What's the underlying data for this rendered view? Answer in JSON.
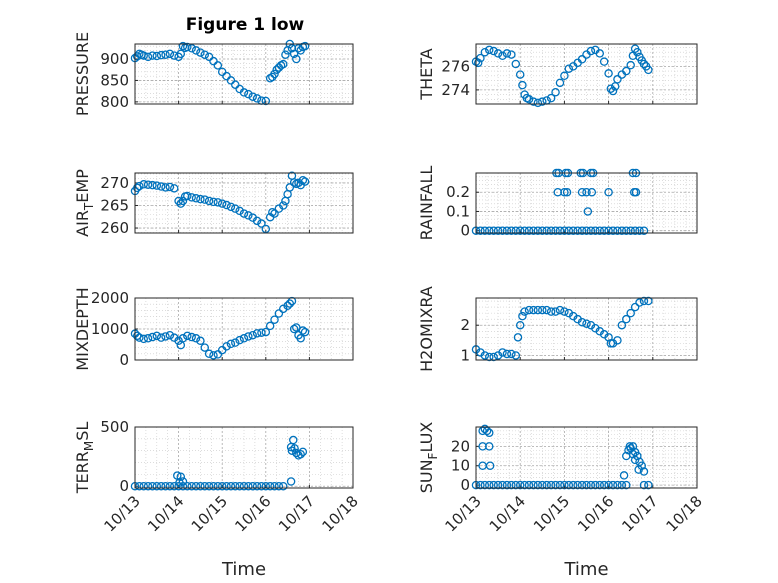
{
  "chart_data": {
    "type": "scatter",
    "title": "Figure 1 low",
    "marker_color": "#0072BD",
    "marker": "circle-open",
    "x_ticks": [
      "10/13",
      "10/14",
      "10/15",
      "10/16",
      "10/17",
      "10/18"
    ],
    "x_range": [
      13,
      18
    ],
    "xlabel": "Time",
    "grid": "major+minor dotted",
    "panels": [
      {
        "ylabel": "PRESSURE",
        "sub": "",
        "sub_after": "",
        "yticks": [
          800,
          850,
          900
        ],
        "ylim": [
          795,
          935
        ],
        "x": [
          13.0,
          13.05,
          13.1,
          13.15,
          13.2,
          13.3,
          13.4,
          13.5,
          13.6,
          13.7,
          13.8,
          13.9,
          14.0,
          14.05,
          14.1,
          14.15,
          14.2,
          14.3,
          14.4,
          14.5,
          14.6,
          14.7,
          14.8,
          14.9,
          15.0,
          15.1,
          15.2,
          15.3,
          15.4,
          15.5,
          15.6,
          15.7,
          15.8,
          15.9,
          16.0,
          16.1,
          16.15,
          16.2,
          16.25,
          16.3,
          16.35,
          16.4,
          16.45,
          16.5,
          16.55,
          16.6,
          16.65,
          16.7,
          16.75,
          16.8,
          16.85,
          16.9
        ],
        "y": [
          902,
          906,
          912,
          910,
          908,
          905,
          908,
          907,
          909,
          910,
          912,
          908,
          905,
          912,
          930,
          926,
          928,
          925,
          920,
          915,
          910,
          905,
          895,
          885,
          870,
          860,
          850,
          840,
          830,
          822,
          818,
          812,
          808,
          803,
          802,
          855,
          858,
          865,
          875,
          880,
          885,
          888,
          910,
          920,
          935,
          925,
          912,
          900,
          925,
          920,
          928,
          930
        ]
      },
      {
        "ylabel": "THETA",
        "sub": "",
        "sub_after": "",
        "yticks": [
          274,
          276
        ],
        "ylim": [
          272.8,
          277.9
        ],
        "x": [
          13.0,
          13.05,
          13.1,
          13.2,
          13.3,
          13.4,
          13.5,
          13.6,
          13.7,
          13.8,
          13.9,
          14.0,
          14.05,
          14.1,
          14.15,
          14.2,
          14.3,
          14.4,
          14.5,
          14.6,
          14.7,
          14.8,
          14.9,
          15.0,
          15.1,
          15.2,
          15.3,
          15.4,
          15.5,
          15.6,
          15.7,
          15.8,
          15.9,
          16.0,
          16.05,
          16.1,
          16.15,
          16.2,
          16.3,
          16.4,
          16.5,
          16.55,
          16.6,
          16.65,
          16.7,
          16.75,
          16.8,
          16.85,
          16.9
        ],
        "y": [
          276.4,
          276.3,
          276.7,
          277.2,
          277.4,
          277.3,
          277.1,
          276.9,
          277.1,
          277.0,
          276.2,
          275.3,
          274.4,
          273.6,
          273.3,
          273.2,
          273.0,
          272.9,
          273.0,
          273.1,
          273.3,
          273.8,
          274.6,
          275.2,
          275.8,
          276.0,
          276.3,
          276.6,
          277.0,
          277.3,
          277.4,
          277.1,
          276.4,
          275.4,
          274.1,
          273.9,
          274.3,
          274.9,
          275.3,
          275.6,
          276.1,
          276.9,
          277.5,
          277.2,
          276.8,
          276.5,
          276.2,
          276.0,
          275.7
        ]
      },
      {
        "ylabel": "AIR",
        "sub": "T",
        "sub_after": "EMP",
        "yticks": [
          260,
          265,
          270
        ],
        "ylim": [
          258.9,
          272.2
        ],
        "x": [
          13.0,
          13.05,
          13.1,
          13.2,
          13.3,
          13.4,
          13.5,
          13.6,
          13.7,
          13.8,
          13.9,
          14.0,
          14.05,
          14.1,
          14.15,
          14.2,
          14.3,
          14.4,
          14.5,
          14.6,
          14.7,
          14.8,
          14.9,
          15.0,
          15.1,
          15.2,
          15.3,
          15.4,
          15.5,
          15.6,
          15.7,
          15.8,
          15.9,
          16.0,
          16.1,
          16.15,
          16.2,
          16.3,
          16.4,
          16.45,
          16.5,
          16.55,
          16.6,
          16.65,
          16.7,
          16.75,
          16.8,
          16.85,
          16.9
        ],
        "y": [
          268.2,
          268.9,
          269.3,
          269.7,
          269.6,
          269.5,
          269.4,
          269.2,
          269.0,
          269.1,
          268.8,
          266.0,
          265.4,
          266.0,
          267.0,
          267.1,
          266.8,
          266.6,
          266.4,
          266.3,
          266.0,
          265.8,
          265.7,
          265.4,
          265.1,
          264.7,
          264.3,
          263.8,
          263.2,
          262.8,
          262.3,
          261.6,
          261.0,
          259.8,
          262.4,
          263.5,
          263.2,
          264.3,
          265.0,
          266.0,
          267.5,
          269.0,
          271.6,
          270.1,
          269.8,
          270.0,
          269.5,
          270.6,
          270.3
        ]
      },
      {
        "ylabel": "RAINFALL",
        "sub": "",
        "sub_after": "",
        "yticks": [
          0,
          0.1,
          0.2
        ],
        "ylim": [
          -0.012,
          0.3
        ],
        "x": [
          13.0,
          13.1,
          13.2,
          13.3,
          13.4,
          13.5,
          13.6,
          13.7,
          13.8,
          13.9,
          14.0,
          14.1,
          14.2,
          14.3,
          14.4,
          14.5,
          14.6,
          14.7,
          14.8,
          14.9,
          15.0,
          15.1,
          15.2,
          15.3,
          15.4,
          15.5,
          15.6,
          15.7,
          15.8,
          15.9,
          16.0,
          16.1,
          16.2,
          16.3,
          16.4,
          16.5,
          16.6,
          16.7,
          16.8,
          14.82,
          14.87,
          15.03,
          15.08,
          15.37,
          15.42,
          15.6,
          15.65,
          16.55,
          16.62,
          14.85,
          15.0,
          15.06,
          15.4,
          15.5,
          15.62,
          16.0,
          16.58,
          16.62,
          15.53
        ],
        "y": [
          0,
          0,
          0,
          0,
          0,
          0,
          0,
          0,
          0,
          0,
          0,
          0,
          0,
          0,
          0,
          0,
          0,
          0,
          0,
          0,
          0,
          0,
          0,
          0,
          0,
          0,
          0,
          0,
          0,
          0,
          0,
          0,
          0,
          0,
          0,
          0,
          0,
          0,
          0,
          0.3,
          0.3,
          0.3,
          0.3,
          0.3,
          0.3,
          0.3,
          0.3,
          0.3,
          0.3,
          0.2,
          0.2,
          0.2,
          0.2,
          0.2,
          0.2,
          0.2,
          0.2,
          0.2,
          0.1
        ]
      },
      {
        "ylabel": "MIXDEPTH",
        "sub": "",
        "sub_after": "",
        "yticks": [
          0,
          1000,
          2000
        ],
        "ylim": [
          0,
          2000
        ],
        "x": [
          13.0,
          13.05,
          13.1,
          13.2,
          13.3,
          13.4,
          13.5,
          13.6,
          13.7,
          13.8,
          13.9,
          14.0,
          14.05,
          14.1,
          14.2,
          14.3,
          14.4,
          14.5,
          14.6,
          14.7,
          14.8,
          14.9,
          15.0,
          15.1,
          15.2,
          15.3,
          15.4,
          15.5,
          15.6,
          15.7,
          15.8,
          15.9,
          16.0,
          16.1,
          16.2,
          16.3,
          16.4,
          16.5,
          16.55,
          16.6,
          16.65,
          16.7,
          16.75,
          16.8,
          16.85,
          16.9
        ],
        "y": [
          850,
          780,
          720,
          680,
          700,
          740,
          780,
          720,
          760,
          800,
          720,
          620,
          480,
          700,
          780,
          740,
          700,
          620,
          400,
          200,
          150,
          180,
          320,
          440,
          520,
          560,
          640,
          700,
          760,
          800,
          860,
          880,
          900,
          1100,
          1300,
          1500,
          1650,
          1750,
          1820,
          1900,
          1000,
          1050,
          800,
          700,
          950,
          900
        ]
      },
      {
        "ylabel": "H2OMIXRA",
        "sub": "",
        "sub_after": "",
        "yticks": [
          1,
          2
        ],
        "ylim": [
          0.85,
          2.9
        ],
        "x": [
          13.0,
          13.1,
          13.2,
          13.3,
          13.4,
          13.5,
          13.6,
          13.7,
          13.8,
          13.9,
          13.95,
          14.0,
          14.05,
          14.1,
          14.2,
          14.3,
          14.4,
          14.5,
          14.6,
          14.7,
          14.8,
          14.9,
          15.0,
          15.1,
          15.2,
          15.3,
          15.4,
          15.5,
          15.6,
          15.7,
          15.8,
          15.9,
          16.0,
          16.05,
          16.1,
          16.2,
          16.3,
          16.4,
          16.5,
          16.6,
          16.7,
          16.8,
          16.9
        ],
        "y": [
          1.2,
          1.1,
          1.0,
          0.95,
          0.95,
          1.0,
          1.1,
          1.05,
          1.05,
          1.0,
          1.6,
          2.0,
          2.3,
          2.45,
          2.5,
          2.5,
          2.5,
          2.5,
          2.5,
          2.45,
          2.45,
          2.5,
          2.45,
          2.4,
          2.3,
          2.2,
          2.1,
          2.05,
          2.0,
          1.9,
          1.8,
          1.7,
          1.6,
          1.4,
          1.4,
          1.5,
          2.0,
          2.2,
          2.4,
          2.6,
          2.75,
          2.8,
          2.8
        ]
      },
      {
        "ylabel": "TERR",
        "sub": "M",
        "sub_after": "SL",
        "yticks": [
          0,
          500
        ],
        "ylim": [
          -15,
          500
        ],
        "x": [
          13.0,
          13.1,
          13.2,
          13.3,
          13.4,
          13.5,
          13.6,
          13.7,
          13.8,
          13.9,
          14.0,
          14.1,
          14.2,
          14.3,
          14.4,
          14.5,
          14.6,
          14.7,
          14.8,
          14.9,
          15.0,
          15.1,
          15.2,
          15.3,
          15.4,
          15.5,
          15.6,
          15.7,
          15.8,
          15.9,
          16.0,
          16.1,
          16.2,
          16.3,
          16.4,
          13.97,
          14.05,
          14.1,
          14.02,
          16.58,
          16.6,
          16.63,
          16.66,
          16.7,
          16.75,
          16.8,
          16.85,
          16.58
        ],
        "y": [
          0,
          0,
          0,
          0,
          0,
          0,
          0,
          0,
          0,
          0,
          0,
          0,
          0,
          0,
          0,
          0,
          0,
          0,
          0,
          0,
          0,
          0,
          0,
          0,
          0,
          0,
          0,
          0,
          0,
          0,
          0,
          0,
          0,
          0,
          0,
          90,
          80,
          40,
          30,
          40,
          300,
          390,
          320,
          280,
          260,
          270,
          290,
          330
        ]
      },
      {
        "ylabel": "SUN",
        "sub": "F",
        "sub_after": "LUX",
        "yticks": [
          0,
          10,
          20
        ],
        "ylim": [
          -1.5,
          30
        ],
        "x": [
          13.0,
          13.1,
          13.2,
          13.3,
          13.4,
          13.5,
          13.6,
          13.7,
          13.8,
          13.9,
          14.0,
          14.1,
          14.2,
          14.3,
          14.4,
          14.5,
          14.6,
          14.7,
          14.8,
          14.9,
          15.0,
          15.1,
          15.2,
          15.3,
          15.4,
          15.5,
          15.6,
          15.7,
          15.8,
          15.9,
          16.0,
          16.1,
          16.2,
          16.3,
          16.4,
          16.8,
          16.9,
          13.15,
          13.2,
          13.25,
          13.3,
          13.15,
          13.3,
          13.15,
          13.32,
          16.35,
          16.4,
          16.45,
          16.5,
          16.55,
          16.6,
          16.65,
          16.7,
          16.75,
          16.8,
          16.48,
          16.55,
          16.6,
          16.68
        ],
        "y": [
          0,
          0,
          0,
          0,
          0,
          0,
          0,
          0,
          0,
          0,
          0,
          0,
          0,
          0,
          0,
          0,
          0,
          0,
          0,
          0,
          0,
          0,
          0,
          0,
          0,
          0,
          0,
          0,
          0,
          0,
          0,
          0,
          0,
          0,
          0,
          0,
          0,
          28,
          29,
          28,
          27,
          20,
          20,
          10,
          10,
          5,
          15,
          18,
          19,
          20,
          17,
          15,
          12,
          10,
          7,
          20,
          16,
          13,
          8
        ]
      }
    ]
  }
}
